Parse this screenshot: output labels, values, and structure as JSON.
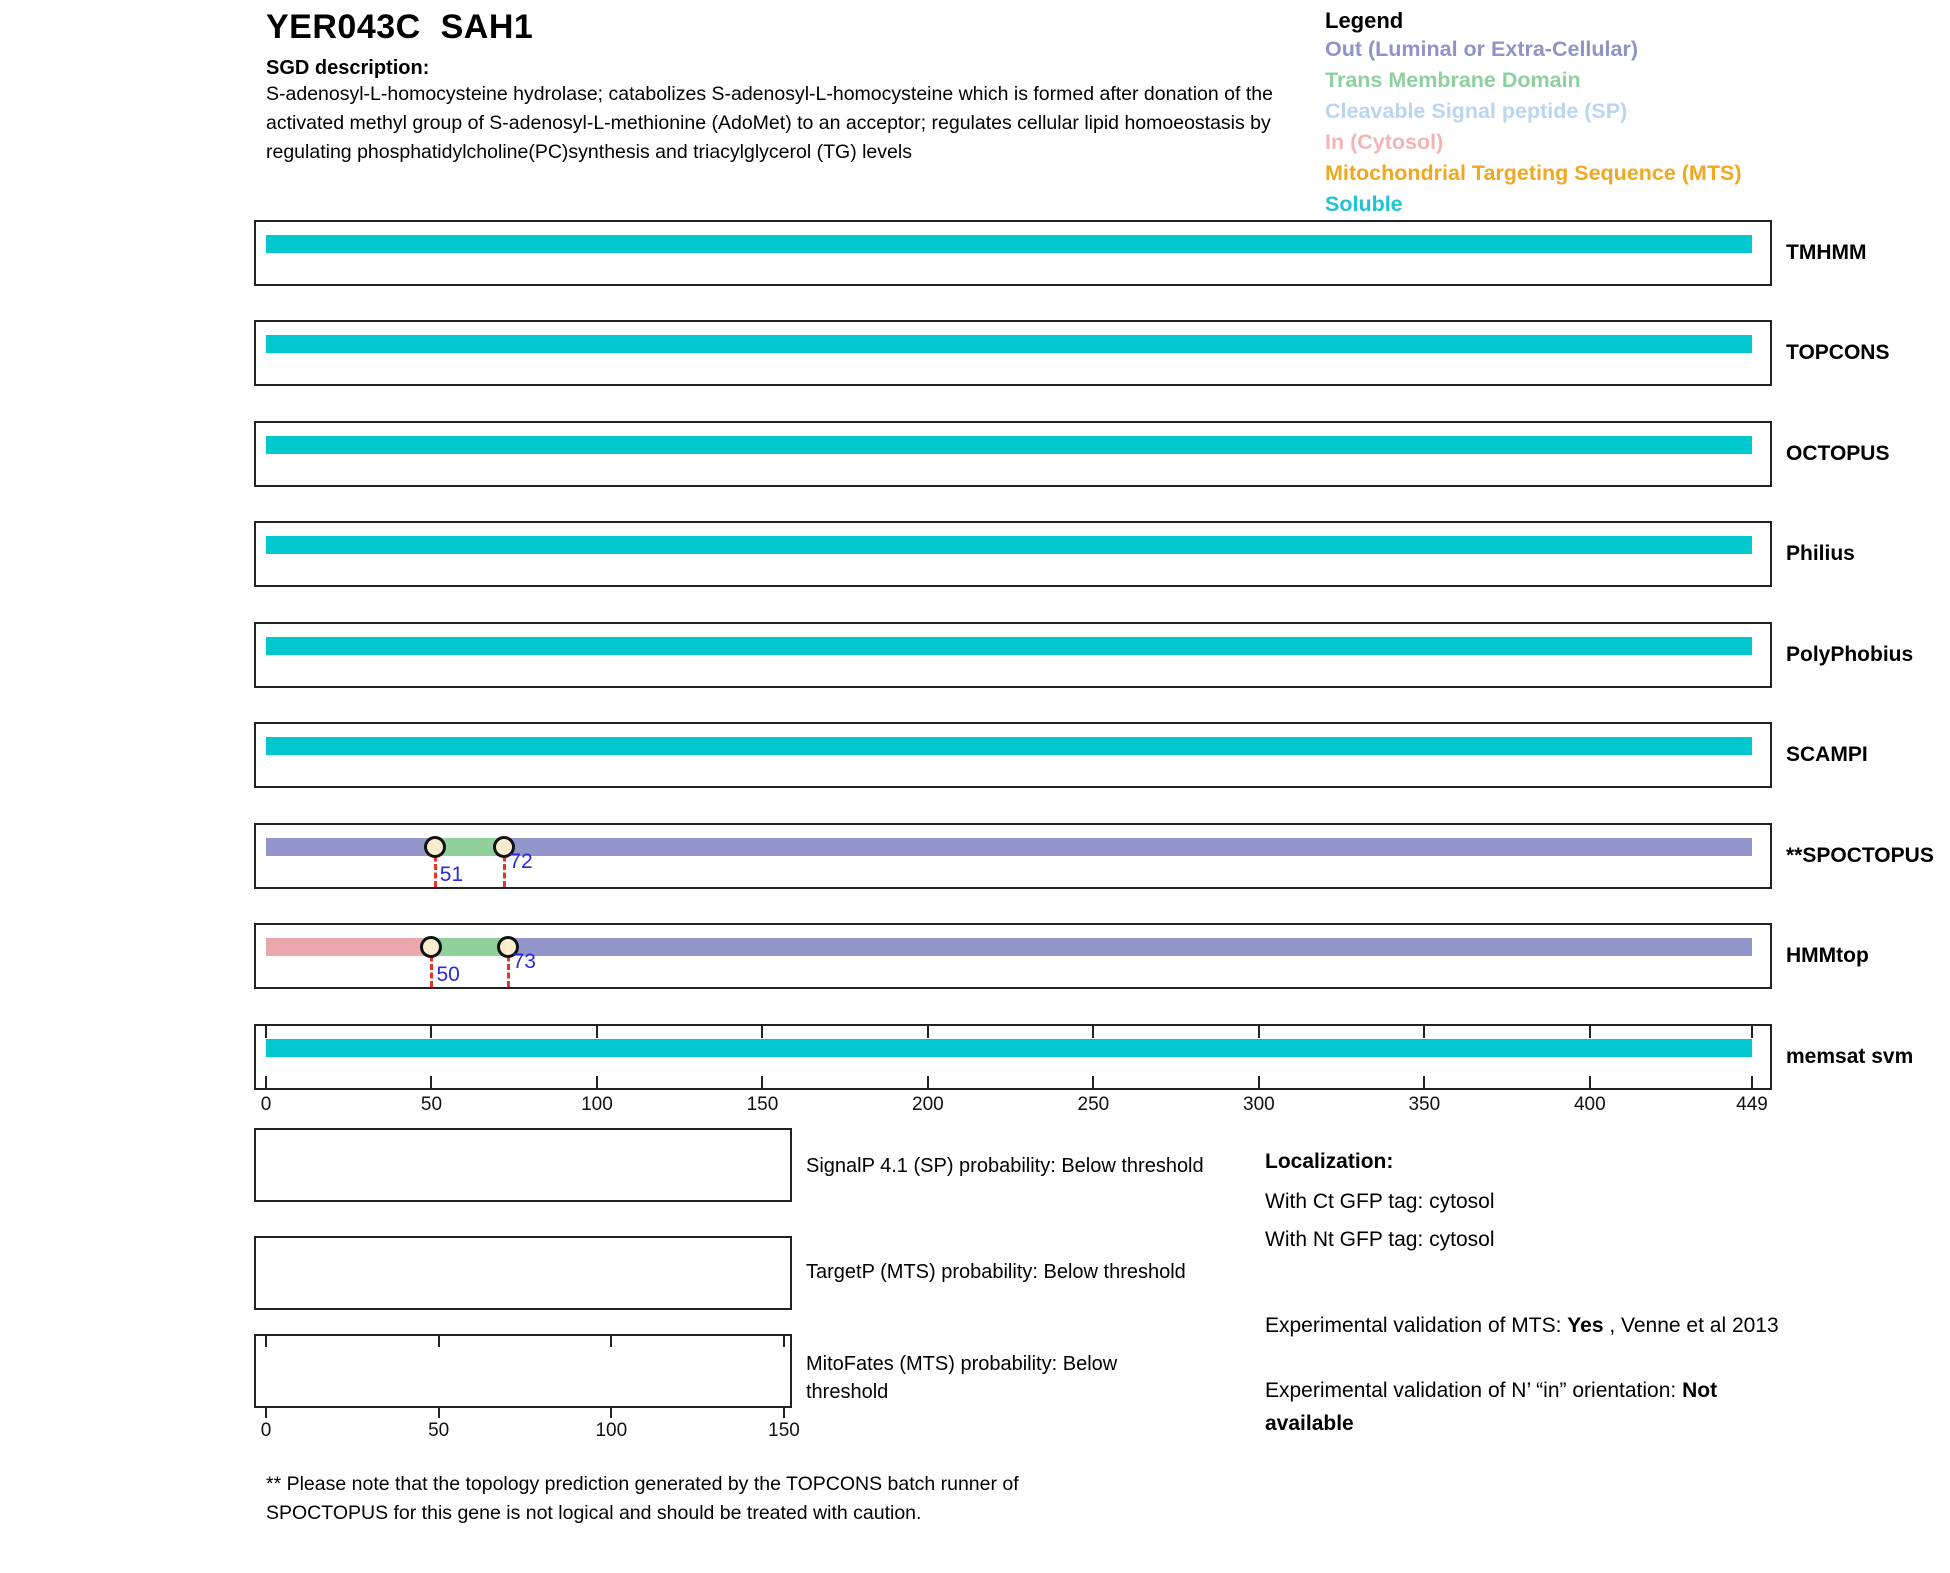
{
  "header": {
    "title": "YER043C  SAH1",
    "sgd_label": "SGD description:",
    "sgd_description": "S-adenosyl-L-homocysteine hydrolase; catabolizes S-adenosyl-L-homocysteine which is formed after donation of the activated methyl group of S-adenosyl-L-methionine (AdoMet) to an acceptor; regulates cellular lipid homoeostasis by regulating phosphatidylcholine(PC)synthesis and triacylglycerol (TG) levels"
  },
  "legend": {
    "heading": "Legend",
    "items": [
      {
        "key": "out",
        "label": "Out (Luminal or Extra-Cellular)",
        "color": "#8f94c8"
      },
      {
        "key": "tm",
        "label": "Trans Membrane Domain",
        "color": "#8fd19e"
      },
      {
        "key": "sp",
        "label": "Cleavable Signal peptide (SP)",
        "color": "#b9d5f2"
      },
      {
        "key": "in",
        "label": "In (Cytosol)",
        "color": "#f4b4b4"
      },
      {
        "key": "mts",
        "label": "Mitochondrial Targeting Sequence (MTS)",
        "color": "#f0a820"
      },
      {
        "key": "soluble",
        "label": "Soluble",
        "color": "#1ec4d6"
      }
    ]
  },
  "colors": {
    "out": "#9396cb",
    "tm": "#90d09b",
    "sp": "#b9d5f2",
    "in": "#e9a7ac",
    "mts": "#f0a820",
    "soluble": "#00c8ce",
    "marker_fill": "#f9edcd",
    "marker_line": "#e8332a",
    "marker_text": "#2a2ae0"
  },
  "chart_data": {
    "type": "topology-tracks",
    "sequence_length": 449,
    "axis_ticks": [
      0,
      50,
      100,
      150,
      200,
      250,
      300,
      350,
      400,
      449
    ],
    "tracks": [
      {
        "name": "TMHMM",
        "ruler": false,
        "segments": [
          {
            "start": 0,
            "end": 449,
            "type": "soluble"
          }
        ],
        "markers": []
      },
      {
        "name": "TOPCONS",
        "ruler": false,
        "segments": [
          {
            "start": 0,
            "end": 449,
            "type": "soluble"
          }
        ],
        "markers": []
      },
      {
        "name": "OCTOPUS",
        "ruler": false,
        "segments": [
          {
            "start": 0,
            "end": 449,
            "type": "soluble"
          }
        ],
        "markers": []
      },
      {
        "name": "Philius",
        "ruler": false,
        "segments": [
          {
            "start": 0,
            "end": 449,
            "type": "soluble"
          }
        ],
        "markers": []
      },
      {
        "name": "PolyPhobius",
        "ruler": false,
        "segments": [
          {
            "start": 0,
            "end": 449,
            "type": "soluble"
          }
        ],
        "markers": []
      },
      {
        "name": "SCAMPI",
        "ruler": false,
        "segments": [
          {
            "start": 0,
            "end": 449,
            "type": "soluble"
          }
        ],
        "markers": []
      },
      {
        "name": "**SPOCTOPUS",
        "ruler": false,
        "segments": [
          {
            "start": 0,
            "end": 51,
            "type": "out"
          },
          {
            "start": 51,
            "end": 72,
            "type": "tm"
          },
          {
            "start": 72,
            "end": 449,
            "type": "out"
          }
        ],
        "markers": [
          {
            "pos": 51,
            "label": "51",
            "level": "low"
          },
          {
            "pos": 72,
            "label": "72",
            "level": "high"
          }
        ]
      },
      {
        "name": "HMMtop",
        "ruler": false,
        "segments": [
          {
            "start": 0,
            "end": 50,
            "type": "in"
          },
          {
            "start": 50,
            "end": 73,
            "type": "tm"
          },
          {
            "start": 73,
            "end": 449,
            "type": "out"
          }
        ],
        "markers": [
          {
            "pos": 50,
            "label": "50",
            "level": "low"
          },
          {
            "pos": 73,
            "label": "73",
            "level": "high"
          }
        ]
      },
      {
        "name": "memsat svm",
        "ruler": true,
        "segments": [
          {
            "start": 0,
            "end": 449,
            "type": "soluble"
          }
        ],
        "markers": []
      }
    ]
  },
  "probability_plots": [
    {
      "id": "signalp",
      "label": "SignalP 4.1 (SP) probability: Below threshold",
      "axis_ticks": []
    },
    {
      "id": "targetp",
      "label": "TargetP (MTS) probability: Below threshold",
      "axis_ticks": []
    },
    {
      "id": "mitofates",
      "label": "MitoFates (MTS) probability: Below threshold",
      "axis_ticks": [
        0,
        50,
        100,
        150
      ],
      "axis_max": 150
    }
  ],
  "localization": {
    "heading": "Localization:",
    "ct_line": "With Ct GFP tag: cytosol",
    "nt_line": "With Nt GFP tag: cytosol",
    "mts_prefix": "Experimental validation of MTS: ",
    "mts_value": "Yes",
    "mts_suffix": " , Venne et al 2013",
    "orientation_prefix": "Experimental validation of N’ “in” orientation: ",
    "orientation_value": "Not available"
  },
  "footnote": "** Please note that the topology prediction generated by the TOPCONS batch runner of SPOCTOPUS for this gene is not logical and should be treated with caution."
}
